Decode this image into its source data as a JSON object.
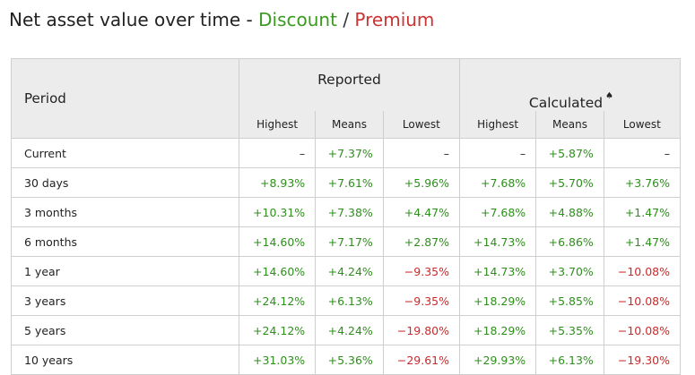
{
  "title": {
    "prefix": "Net asset value over time -",
    "discount": "Discount",
    "separator": "/",
    "premium": "Premium"
  },
  "colors": {
    "discount": "#3a9a1e",
    "premium": "#cc3333"
  },
  "table": {
    "period_header": "Period",
    "reported_header": "Reported",
    "calculated_header": "Calculated",
    "calculated_marker_icon": "spade-icon",
    "calculated_marker": "♠",
    "sub_headers": [
      "Highest",
      "Means",
      "Lowest",
      "Highest",
      "Means",
      "Lowest"
    ],
    "rows": [
      {
        "period": "Current",
        "values": [
          "–",
          "+7.37%",
          "–",
          "–",
          "+5.87%",
          "–"
        ]
      },
      {
        "period": "30 days",
        "values": [
          "+8.93%",
          "+7.61%",
          "+5.96%",
          "+7.68%",
          "+5.70%",
          "+3.76%"
        ]
      },
      {
        "period": "3 months",
        "values": [
          "+10.31%",
          "+7.38%",
          "+4.47%",
          "+7.68%",
          "+4.88%",
          "+1.47%"
        ]
      },
      {
        "period": "6 months",
        "values": [
          "+14.60%",
          "+7.17%",
          "+2.87%",
          "+14.73%",
          "+6.86%",
          "+1.47%"
        ]
      },
      {
        "period": "1 year",
        "values": [
          "+14.60%",
          "+4.24%",
          "-9.35%",
          "+14.73%",
          "+3.70%",
          "-10.08%"
        ]
      },
      {
        "period": "3 years",
        "values": [
          "+24.12%",
          "+6.13%",
          "-9.35%",
          "+18.29%",
          "+5.85%",
          "-10.08%"
        ]
      },
      {
        "period": "5 years",
        "values": [
          "+24.12%",
          "+4.24%",
          "-19.80%",
          "+18.29%",
          "+5.35%",
          "-10.08%"
        ]
      },
      {
        "period": "10 years",
        "values": [
          "+31.03%",
          "+5.36%",
          "-29.61%",
          "+29.93%",
          "+6.13%",
          "-19.30%"
        ]
      }
    ]
  }
}
